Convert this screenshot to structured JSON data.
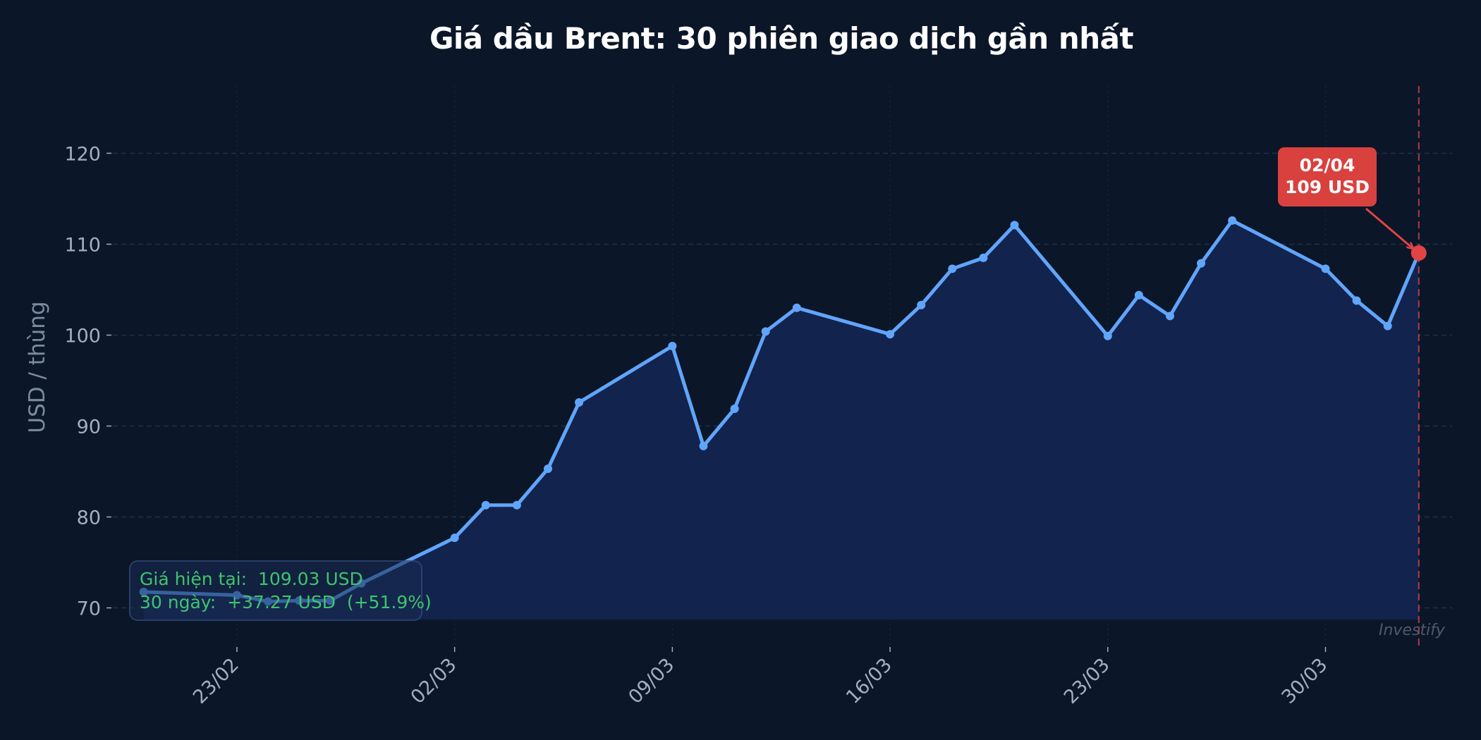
{
  "chart_data": {
    "type": "line",
    "title": "Giá dầu Brent: 30 phiên giao dịch gần nhất",
    "xlabel": "",
    "ylabel": "USD / thùng",
    "ylim": [
      65.7,
      127.4
    ],
    "yticks": [
      70,
      80,
      90,
      100,
      110,
      120
    ],
    "xticks": [
      "23/02",
      "02/03",
      "09/03",
      "16/03",
      "23/03",
      "30/03"
    ],
    "grid": true,
    "legend": null,
    "x": [
      "20/02",
      "23/02",
      "24/02",
      "25/02",
      "26/02",
      "27/02",
      "02/03",
      "03/03",
      "04/03",
      "05/03",
      "06/03",
      "09/03",
      "10/03",
      "11/03",
      "12/03",
      "13/03",
      "16/03",
      "17/03",
      "18/03",
      "19/03",
      "20/03",
      "23/03",
      "24/03",
      "25/03",
      "26/03",
      "27/03",
      "30/03",
      "31/03",
      "01/04",
      "02/04"
    ],
    "series": [
      {
        "name": "Brent",
        "color": "#60a5fa",
        "values": [
          71.76,
          71.4,
          70.7,
          70.8,
          70.8,
          72.7,
          77.7,
          81.3,
          81.3,
          85.3,
          92.6,
          98.8,
          87.8,
          91.9,
          100.4,
          103.0,
          100.1,
          103.3,
          107.3,
          108.5,
          112.1,
          99.9,
          104.4,
          102.1,
          107.9,
          112.6,
          107.3,
          103.8,
          101.0,
          109.03
        ]
      }
    ],
    "annotations": [
      {
        "type": "callout",
        "x": "02/04",
        "y": 109.03,
        "text_line1": "02/04",
        "text_line2": "109 USD",
        "color": "#d9413f"
      },
      {
        "type": "vline",
        "x": "02/04",
        "style": "dashed",
        "color": "#d9413f"
      },
      {
        "type": "textbox",
        "line1": "Giá hiện tại:  109.03 USD",
        "line2": "30 ngày:  +37.27 USD  (+51.9%)",
        "color": "#3ec46d"
      }
    ],
    "watermark": "Investify"
  },
  "colors": {
    "background": "#0b1628",
    "line": "#60a5fa",
    "fill": "#12234d",
    "highlight": "#e04444",
    "positive": "#3ec46d"
  }
}
